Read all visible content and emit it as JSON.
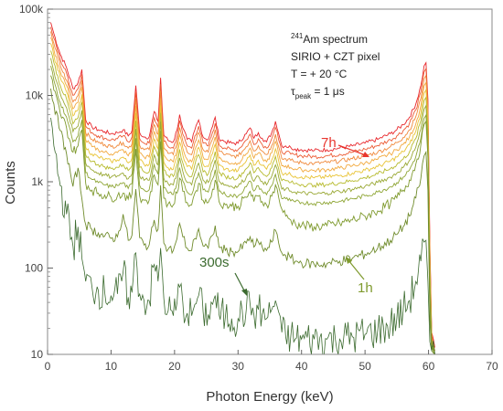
{
  "chart_data": {
    "type": "line",
    "xlabel": "Photon Energy (keV)",
    "ylabel": "Counts",
    "xlim": [
      0,
      70
    ],
    "ylim": [
      10,
      100000
    ],
    "yscale": "log",
    "grid": false,
    "x_ticks": [
      0,
      10,
      20,
      30,
      40,
      50,
      60,
      70
    ],
    "x_tick_labels": [
      "0",
      "10",
      "20",
      "30",
      "40",
      "50",
      "60",
      "70"
    ],
    "y_ticks": [
      10,
      100,
      1000,
      10000,
      100000
    ],
    "y_tick_labels": [
      "10",
      "100",
      "1k",
      "10k",
      "100k"
    ],
    "info_box": {
      "line1_sup": "241",
      "line1_text": "Am spectrum",
      "line2": "SIRIO + CZT pixel",
      "line3": "T = + 20 °C",
      "line4_tau": "τ",
      "line4_sub": "peak",
      "line4_rest": " = 1 μs"
    },
    "annotations": [
      {
        "text": "7h",
        "color": "#e8352e"
      },
      {
        "text": "1h",
        "color": "#7f9a2e"
      },
      {
        "text": "300s",
        "color": "#3c6b2f"
      }
    ],
    "x": [
      0.5,
      1,
      2,
      3,
      4,
      4.8,
      5.4,
      6,
      7,
      8,
      9,
      10,
      11,
      11.9,
      12.7,
      13.3,
      13.9,
      14.5,
      15.2,
      16,
      16.8,
      17.4,
      17.8,
      18.3,
      19,
      19.8,
      20.4,
      20.8,
      21.3,
      22,
      22.7,
      23.2,
      23.8,
      24.5,
      25.3,
      26.0,
      26.4,
      27,
      28,
      29,
      30,
      31.3,
      31.9,
      32.5,
      33.2,
      33.8,
      34.5,
      35.3,
      35.9,
      36.4,
      36.9,
      37.5,
      38.3,
      39,
      40,
      42,
      44,
      46,
      48,
      50,
      52,
      54,
      55,
      56,
      57,
      58,
      58.8,
      59.3,
      59.6,
      59.9,
      60.2,
      60.5,
      61
    ],
    "series": [
      {
        "color": "#e8262b",
        "values": [
          70000,
          52000,
          30000,
          21000,
          12000,
          14000,
          20000,
          5200,
          4300,
          4000,
          3800,
          3600,
          3700,
          4000,
          3400,
          3900,
          13000,
          3700,
          3300,
          3300,
          6500,
          5000,
          16000,
          3500,
          3000,
          2900,
          4000,
          6000,
          4200,
          3100,
          2900,
          4000,
          5200,
          3300,
          3100,
          4400,
          5600,
          3200,
          2900,
          2800,
          2800,
          3600,
          4200,
          3200,
          3700,
          3200,
          2900,
          3700,
          5000,
          3600,
          2600,
          2600,
          2500,
          2400,
          2350,
          2300,
          2350,
          2450,
          2600,
          2800,
          3100,
          3600,
          4000,
          4600,
          5600,
          8000,
          13000,
          22000,
          24000,
          9000,
          200,
          18,
          12
        ]
      },
      {
        "color": "#ec5b34",
        "values": [
          62000,
          46000,
          26000,
          18000,
          10000,
          12000,
          17500,
          4400,
          3700,
          3400,
          3200,
          3050,
          3150,
          3400,
          2900,
          3300,
          11000,
          3150,
          2800,
          2800,
          5500,
          4250,
          13500,
          2950,
          2550,
          2450,
          3400,
          5100,
          3550,
          2600,
          2450,
          3400,
          4400,
          2800,
          2600,
          3750,
          4750,
          2700,
          2450,
          2350,
          2350,
          3050,
          3550,
          2700,
          3150,
          2700,
          2450,
          3150,
          4250,
          3050,
          2200,
          2200,
          2100,
          2050,
          2000,
          1950,
          2000,
          2080,
          2200,
          2380,
          2640,
          3060,
          3400,
          3900,
          4750,
          6800,
          11000,
          18700,
          20400,
          7650,
          170,
          17,
          12
        ]
      },
      {
        "color": "#f08a3c",
        "values": [
          55000,
          40000,
          22000,
          15000,
          8400,
          10000,
          15000,
          3700,
          3100,
          2850,
          2700,
          2550,
          2650,
          2850,
          2450,
          2750,
          9200,
          2650,
          2350,
          2350,
          4600,
          3550,
          11300,
          2480,
          2130,
          2060,
          2850,
          4250,
          2980,
          2200,
          2060,
          2850,
          3700,
          2350,
          2200,
          3150,
          4000,
          2270,
          2060,
          1980,
          1980,
          2550,
          2980,
          2270,
          2620,
          2270,
          2060,
          2620,
          3550,
          2550,
          1850,
          1850,
          1770,
          1700,
          1670,
          1630,
          1670,
          1740,
          1850,
          2000,
          2200,
          2550,
          2840,
          3260,
          3980,
          5700,
          9200,
          15600,
          17000,
          6400,
          145,
          16,
          11
        ]
      },
      {
        "color": "#f2a93e",
        "values": [
          47000,
          34000,
          19000,
          13000,
          7000,
          8300,
          12500,
          3050,
          2550,
          2350,
          2200,
          2100,
          2180,
          2350,
          2000,
          2280,
          7600,
          2180,
          1930,
          1930,
          3800,
          2930,
          9300,
          2050,
          1760,
          1700,
          2350,
          3500,
          2460,
          1820,
          1700,
          2350,
          3050,
          1930,
          1820,
          2600,
          3300,
          1880,
          1700,
          1640,
          1640,
          2110,
          2460,
          1880,
          2160,
          1880,
          1700,
          2160,
          2930,
          2110,
          1530,
          1530,
          1460,
          1410,
          1380,
          1350,
          1380,
          1440,
          1530,
          1650,
          1820,
          2110,
          2350,
          2700,
          3290,
          4700,
          7600,
          12900,
          14100,
          5300,
          120,
          15,
          11
        ]
      },
      {
        "color": "#e9c437",
        "values": [
          40000,
          29000,
          16000,
          11000,
          5800,
          6800,
          10300,
          2500,
          2100,
          1930,
          1820,
          1730,
          1790,
          1930,
          1650,
          1880,
          6300,
          1790,
          1590,
          1590,
          3130,
          2410,
          7700,
          1690,
          1450,
          1400,
          1930,
          2890,
          2030,
          1500,
          1400,
          1930,
          2510,
          1590,
          1500,
          2140,
          2720,
          1550,
          1400,
          1350,
          1350,
          1740,
          2030,
          1550,
          1780,
          1550,
          1400,
          1780,
          2410,
          1740,
          1260,
          1260,
          1200,
          1160,
          1140,
          1110,
          1140,
          1180,
          1260,
          1360,
          1500,
          1740,
          1930,
          2230,
          2710,
          3870,
          6300,
          10600,
          11600,
          4400,
          100,
          14,
          11
        ]
      },
      {
        "color": "#b7bb2e",
        "values": [
          33000,
          24000,
          13000,
          9000,
          4700,
          5500,
          8400,
          2050,
          1720,
          1580,
          1490,
          1420,
          1470,
          1580,
          1350,
          1540,
          5100,
          1470,
          1300,
          1300,
          2560,
          1970,
          6300,
          1380,
          1190,
          1150,
          1580,
          2370,
          1660,
          1230,
          1150,
          1580,
          2060,
          1300,
          1230,
          1750,
          2230,
          1270,
          1150,
          1110,
          1110,
          1420,
          1660,
          1270,
          1460,
          1270,
          1150,
          1460,
          1970,
          1420,
          1030,
          1030,
          980,
          950,
          930,
          910,
          930,
          970,
          1030,
          1110,
          1230,
          1420,
          1580,
          1830,
          2220,
          3170,
          5160,
          8700,
          9500,
          3600,
          82,
          13,
          10
        ]
      },
      {
        "color": "#9aa936",
        "values": [
          27000,
          19000,
          10500,
          7200,
          3800,
          4400,
          6700,
          1640,
          1370,
          1260,
          1190,
          1130,
          1170,
          1260,
          1080,
          1230,
          4100,
          1170,
          1040,
          1040,
          2040,
          1570,
          5000,
          1100,
          950,
          920,
          1260,
          1890,
          1320,
          980,
          920,
          1260,
          1640,
          1040,
          980,
          1400,
          1780,
          1010,
          920,
          885,
          885,
          1130,
          1320,
          1010,
          1160,
          1010,
          920,
          1160,
          1570,
          1130,
          820,
          820,
          780,
          760,
          740,
          720,
          740,
          770,
          820,
          885,
          980,
          1130,
          1260,
          1460,
          1770,
          2530,
          4100,
          6900,
          7600,
          2900,
          65,
          12,
          10
        ]
      },
      {
        "color": "#8fa636",
        "values": [
          22000,
          15000,
          8200,
          5600,
          2900,
          3400,
          5200,
          1270,
          1060,
          975,
          920,
          875,
          905,
          975,
          835,
          950,
          3200,
          905,
          805,
          805,
          1580,
          1220,
          3900,
          850,
          735,
          710,
          975,
          1460,
          1020,
          760,
          710,
          975,
          1270,
          805,
          760,
          1080,
          1380,
          780,
          710,
          685,
          685,
          875,
          1020,
          780,
          900,
          780,
          710,
          900,
          1220,
          875,
          635,
          635,
          600,
          585,
          575,
          560,
          575,
          595,
          635,
          685,
          760,
          875,
          975,
          1130,
          1370,
          1960,
          3170,
          5400,
          5900,
          2200,
          52,
          12,
          10
        ]
      },
      {
        "color": "#7f9a2e",
        "values": [
          17000,
          11500,
          6200,
          4200,
          2200,
          2600,
          4000,
          960,
          800,
          740,
          700,
          660,
          685,
          740,
          630,
          720,
          2400,
          685,
          610,
          610,
          1200,
          920,
          2950,
          645,
          555,
          540,
          740,
          1100,
          775,
          575,
          540,
          740,
          960,
          610,
          575,
          820,
          1050,
          590,
          540,
          520,
          520,
          660,
          775,
          590,
          680,
          590,
          540,
          680,
          920,
          660,
          480,
          400,
          360,
          330,
          310,
          300,
          310,
          330,
          360,
          400,
          460,
          560,
          650,
          800,
          1050,
          1600,
          2700,
          4600,
          5000,
          1900,
          45,
          12,
          10
        ]
      },
      {
        "color": "#6f8b2b",
        "values": [
          12000,
          8000,
          3900,
          2100,
          880,
          1450,
          640,
          320,
          280,
          255,
          235,
          220,
          230,
          420,
          210,
          240,
          820,
          225,
          185,
          185,
          360,
          280,
          910,
          195,
          165,
          160,
          220,
          330,
          230,
          170,
          160,
          220,
          285,
          180,
          170,
          240,
          310,
          175,
          160,
          155,
          155,
          195,
          230,
          175,
          200,
          175,
          160,
          200,
          275,
          195,
          150,
          140,
          130,
          120,
          115,
          110,
          112,
          120,
          130,
          145,
          170,
          210,
          245,
          300,
          400,
          650,
          1100,
          2000,
          2200,
          800,
          25,
          11,
          10
        ]
      },
      {
        "color": "#3c6b2f",
        "values": [
          5500,
          2600,
          900,
          420,
          180,
          300,
          130,
          70,
          60,
          55,
          52,
          48,
          50,
          90,
          46,
          52,
          150,
          50,
          42,
          42,
          110,
          70,
          170,
          45,
          32,
          28,
          40,
          60,
          40,
          30,
          28,
          38,
          48,
          31,
          29,
          38,
          48,
          29,
          27,
          26,
          26,
          33,
          38,
          29,
          33,
          29,
          26,
          33,
          42,
          31,
          18,
          16,
          16,
          15,
          15,
          15,
          15,
          15,
          16,
          17,
          19,
          22,
          26,
          32,
          42,
          70,
          120,
          200,
          210,
          70,
          14,
          11,
          10
        ]
      }
    ]
  }
}
